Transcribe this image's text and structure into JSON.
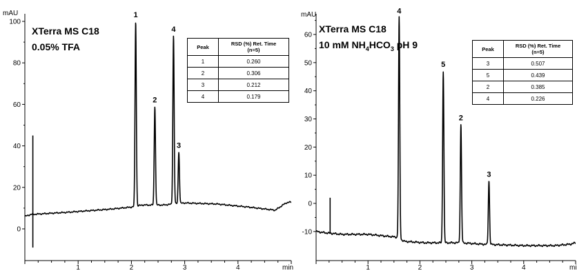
{
  "chart_data": [
    {
      "type": "line",
      "title": "XTerra MS C18",
      "subtitle": "0.05% TFA",
      "ylabel": "mAU",
      "xlabel": "min",
      "xlim": [
        0,
        5.0
      ],
      "ylim": [
        -10,
        102
      ],
      "yticks": [
        0,
        20,
        40,
        60,
        80,
        100
      ],
      "xticks": [
        1,
        2,
        3,
        4
      ],
      "baseline": [
        [
          0.0,
          6
        ],
        [
          0.12,
          7
        ],
        [
          0.15,
          7
        ],
        [
          0.8,
          8
        ],
        [
          1.6,
          9.5
        ],
        [
          2.0,
          10.5
        ],
        [
          2.2,
          11.5
        ],
        [
          2.6,
          11.5
        ],
        [
          3.0,
          12.5
        ],
        [
          3.6,
          12
        ],
        [
          4.2,
          10.5
        ],
        [
          4.7,
          9
        ],
        [
          4.9,
          12.5
        ],
        [
          5.0,
          13
        ]
      ],
      "series": [
        {
          "label": "1",
          "rt": 2.08,
          "height": 100
        },
        {
          "label": "2",
          "rt": 2.44,
          "height": 59
        },
        {
          "label": "3",
          "rt": 2.89,
          "height": 37
        },
        {
          "label": "4",
          "rt": 2.79,
          "height": 93
        }
      ],
      "solvent_front": [
        {
          "x": 0.15,
          "y": 45
        },
        {
          "x": 0.15,
          "y": -9
        }
      ],
      "table": {
        "headers": [
          "Peak",
          "RSD (%) Ret. Time",
          "(n=5)"
        ],
        "rows": [
          [
            "1",
            "0.260"
          ],
          [
            "2",
            "0.306"
          ],
          [
            "3",
            "0.212"
          ],
          [
            "4",
            "0.179"
          ]
        ]
      }
    },
    {
      "type": "line",
      "title": "XTerra MS C18",
      "subtitle_parts": [
        "10 mM NH",
        "4",
        "HCO",
        "3",
        "  pH 9"
      ],
      "ylabel": "mAU",
      "xlabel": "min",
      "xlim": [
        0,
        5.0
      ],
      "ylim": [
        -15,
        67
      ],
      "yticks": [
        -10,
        0,
        10,
        20,
        30,
        40,
        50,
        60
      ],
      "xticks": [
        1,
        2,
        3,
        4
      ],
      "baseline": [
        [
          0.0,
          -10
        ],
        [
          0.2,
          -10.5
        ],
        [
          0.5,
          -11
        ],
        [
          1.0,
          -11
        ],
        [
          1.55,
          -12
        ],
        [
          1.7,
          -13.5
        ],
        [
          2.1,
          -14
        ],
        [
          2.4,
          -14
        ],
        [
          2.8,
          -14
        ],
        [
          3.2,
          -14.5
        ],
        [
          4.0,
          -15
        ],
        [
          4.6,
          -15
        ],
        [
          4.9,
          -14.5
        ],
        [
          5.0,
          -14
        ]
      ],
      "series": [
        {
          "label": "4",
          "rt": 1.6,
          "height": 66
        },
        {
          "label": "5",
          "rt": 2.45,
          "height": 47
        },
        {
          "label": "2",
          "rt": 2.79,
          "height": 28
        },
        {
          "label": "3",
          "rt": 3.33,
          "height": 8
        }
      ],
      "solvent_front": [
        {
          "x": 0.27,
          "y": 2
        }
      ],
      "table": {
        "headers": [
          "Peak",
          "RSD (%) Ret. Time",
          "(n=5)"
        ],
        "rows": [
          [
            "3",
            "0.507"
          ],
          [
            "5",
            "0.439"
          ],
          [
            "2",
            "0.385"
          ],
          [
            "4",
            "0.226"
          ]
        ]
      }
    }
  ]
}
